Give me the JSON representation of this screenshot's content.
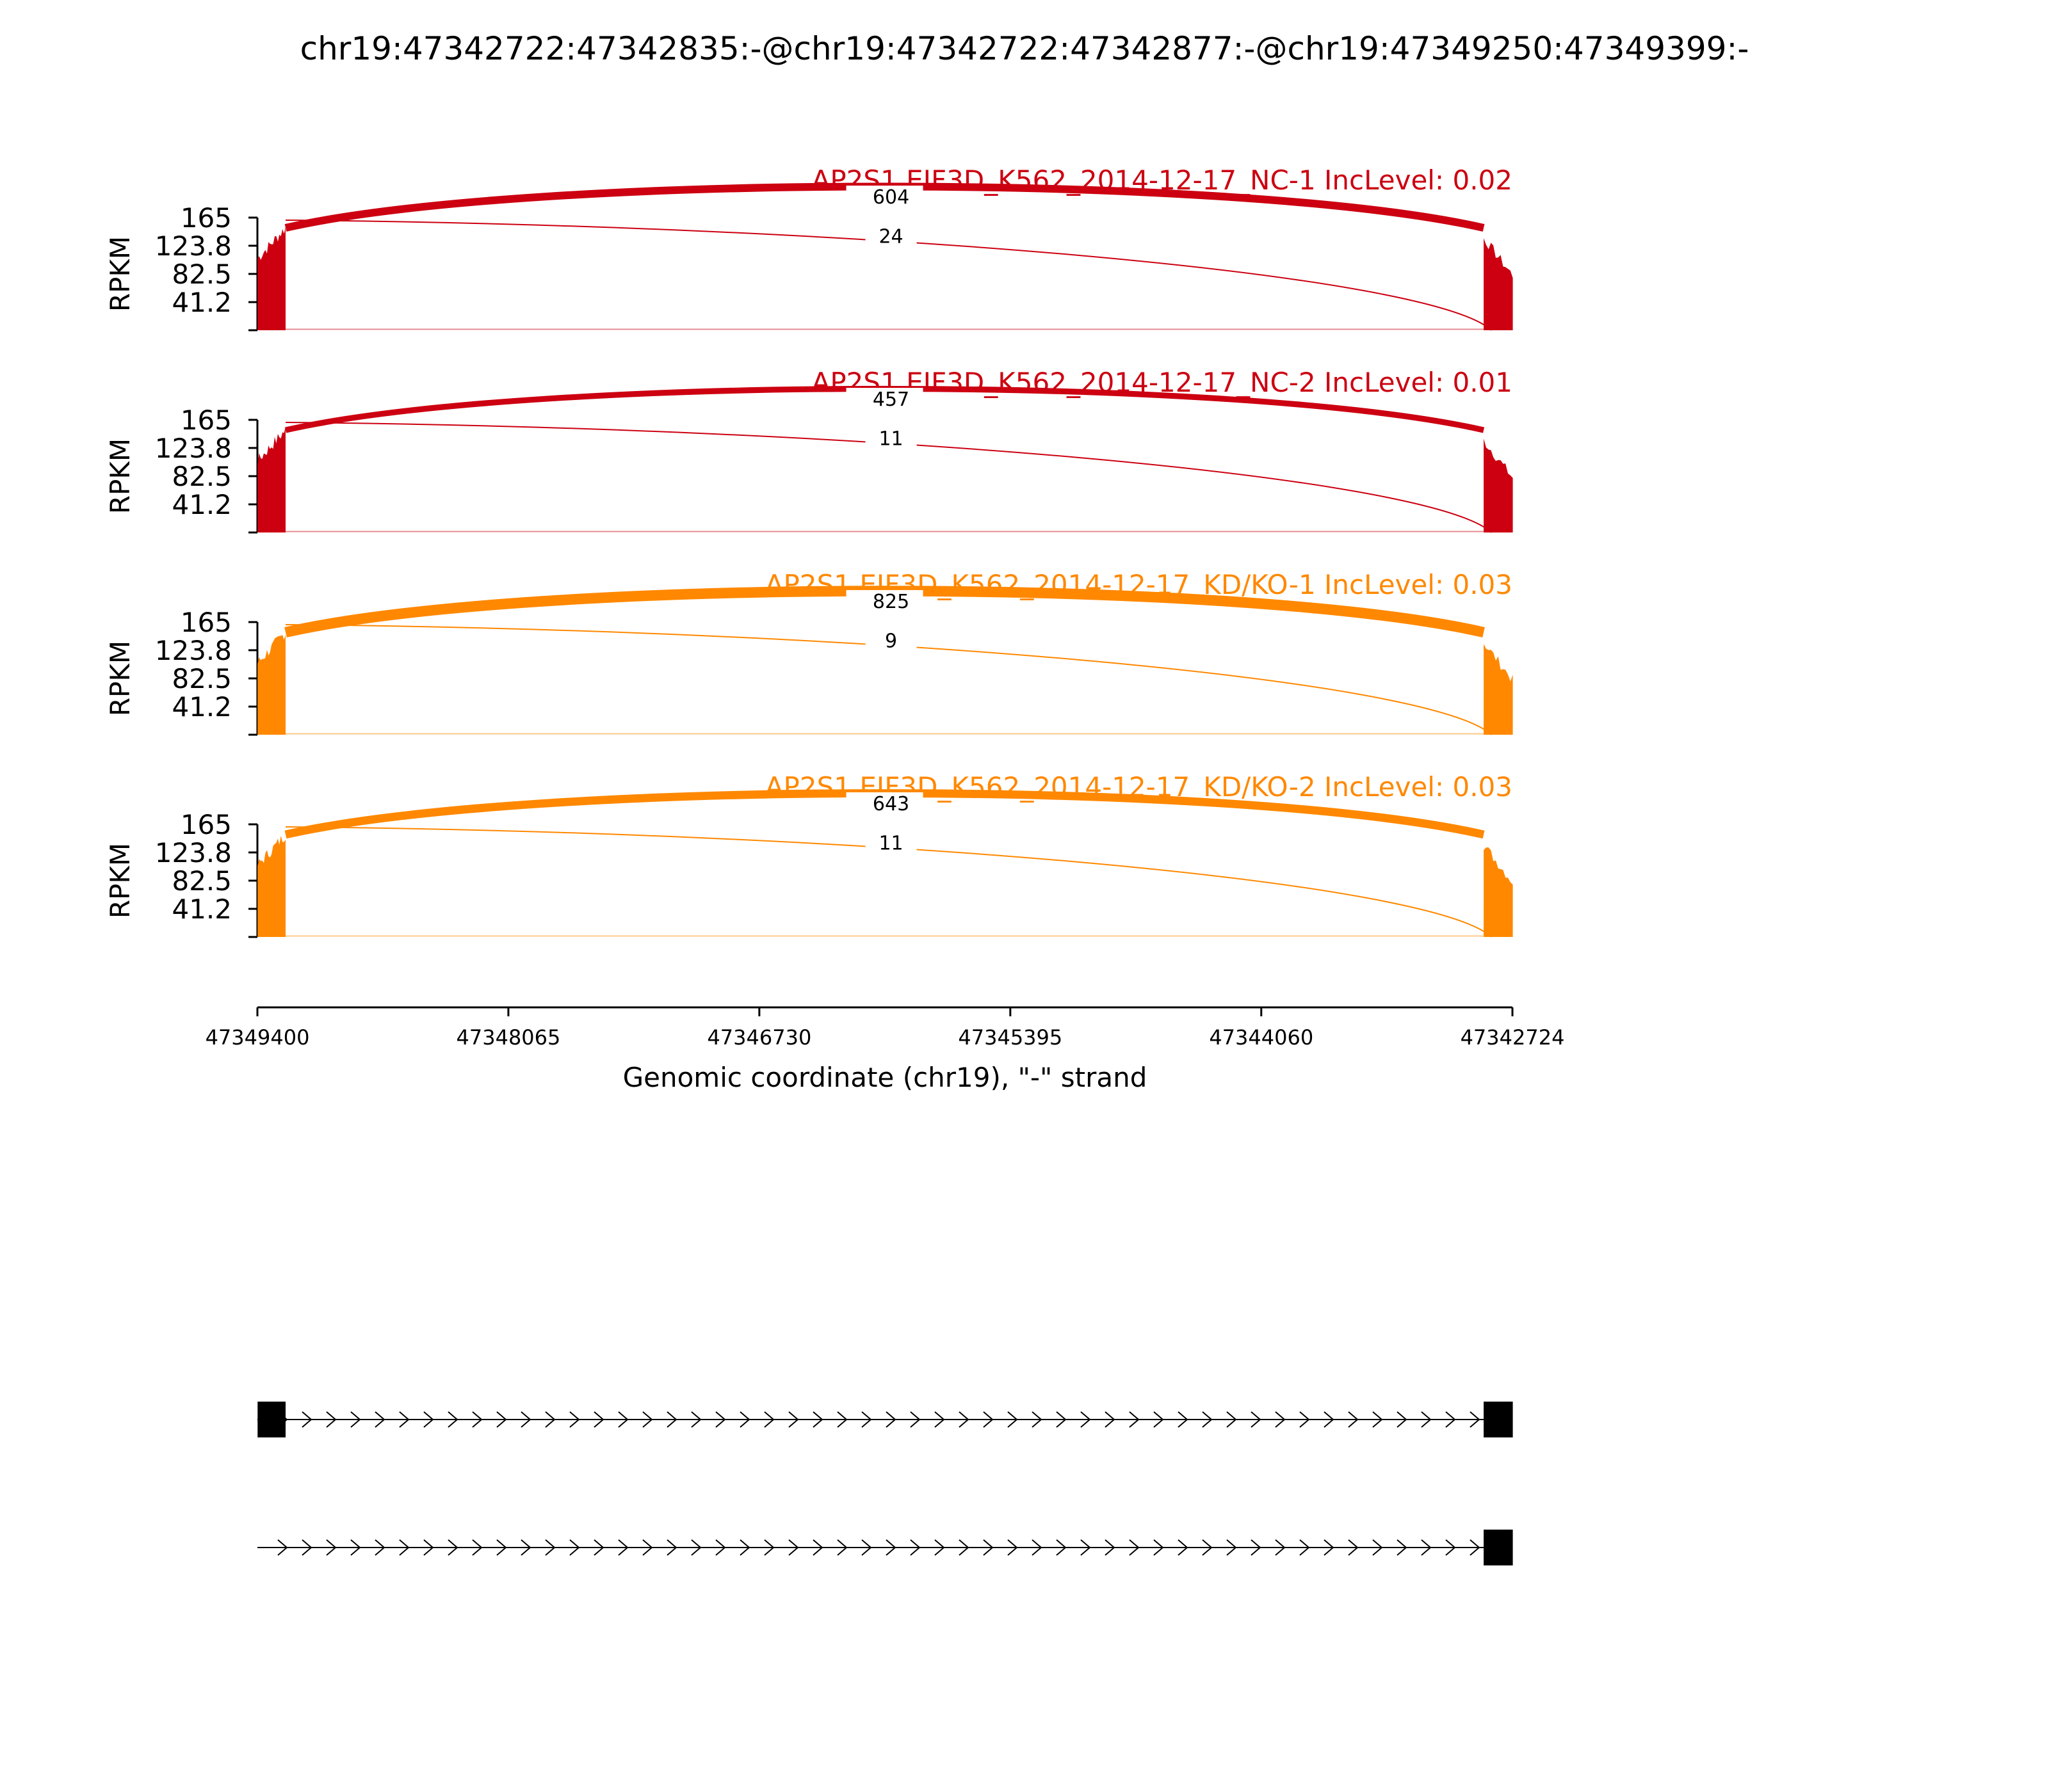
{
  "figure": {
    "title": "chr19:47342722:47342835:-@chr19:47342722:47342877:-@chr19:47349250:47349399:-"
  },
  "chart_data": {
    "type": "sashimi",
    "x_axis": {
      "label": "Genomic coordinate (chr19), \"-\" strand",
      "reversed": true,
      "range": [
        47349400,
        47342724
      ],
      "ticks": [
        47349400,
        47348065,
        47346730,
        47345395,
        47344060,
        47342724
      ],
      "tick_labels": [
        "47349400",
        "47348065",
        "47346730",
        "47345395",
        "47344060",
        "47342724"
      ]
    },
    "y_axis": {
      "label": "RPKM",
      "range": [
        0,
        165
      ],
      "ticks": [
        41.2,
        82.5,
        123.8,
        165
      ],
      "tick_labels": [
        "41.2",
        "82.5",
        "123.8",
        "165"
      ]
    },
    "tracks": [
      {
        "label": "AP2S1 EIF3D_K562_2014-12-17_NC-1 IncLevel: 0.02",
        "color": "#cc0011",
        "junctions": [
          {
            "from": 47349250,
            "to": 47342877,
            "count": 604,
            "count_label": "604"
          },
          {
            "from": 47349250,
            "to": 47342835,
            "count": 24,
            "count_label": "24"
          }
        ]
      },
      {
        "label": "AP2S1 EIF3D_K562_2014-12-17_NC-2 IncLevel: 0.01",
        "color": "#cc0011",
        "junctions": [
          {
            "from": 47349250,
            "to": 47342877,
            "count": 457,
            "count_label": "457"
          },
          {
            "from": 47349250,
            "to": 47342835,
            "count": 11,
            "count_label": "11"
          }
        ]
      },
      {
        "label": "AP2S1 EIF3D_K562_2014-12-17_KD/KO-1 IncLevel: 0.03",
        "color": "#ff8800",
        "junctions": [
          {
            "from": 47349250,
            "to": 47342877,
            "count": 825,
            "count_label": "825"
          },
          {
            "from": 47349250,
            "to": 47342835,
            "count": 9,
            "count_label": "9"
          }
        ]
      },
      {
        "label": "AP2S1 EIF3D_K562_2014-12-17_KD/KO-2 IncLevel: 0.03",
        "color": "#ff8800",
        "junctions": [
          {
            "from": 47349250,
            "to": 47342877,
            "count": 643,
            "count_label": "643"
          },
          {
            "from": 47349250,
            "to": 47342835,
            "count": 11,
            "count_label": "11"
          }
        ]
      }
    ],
    "isoforms": [
      {
        "exons": [
          [
            47349399,
            47349250
          ],
          [
            47342877,
            47342722
          ]
        ]
      },
      {
        "exons": [
          [
            47342877,
            47342722
          ]
        ]
      }
    ]
  }
}
